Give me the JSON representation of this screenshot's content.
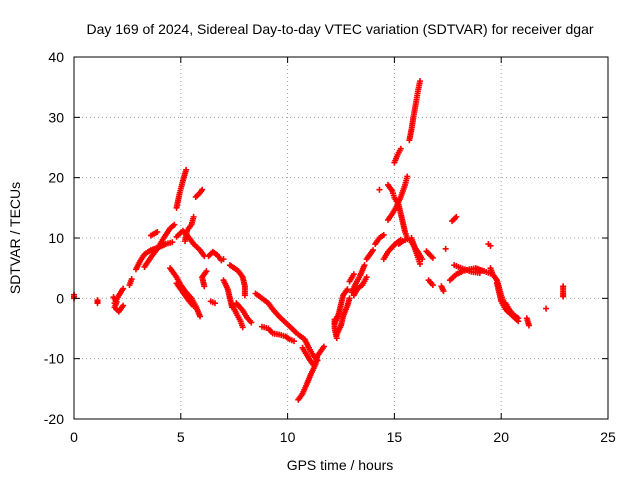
{
  "chart_data": {
    "type": "scatter",
    "title": "Day 169 of 2024, Sidereal Day-to-day VTEC variation (SDTVAR) for receiver dgar",
    "xlabel": "GPS time / hours",
    "ylabel": "SDTVAR / TECUs",
    "xlim": [
      0,
      25
    ],
    "ylim": [
      -20,
      40
    ],
    "xticks": [
      "0",
      "5",
      "10",
      "15",
      "20",
      "25"
    ],
    "yticks": [
      "-20",
      "-10",
      "0",
      "10",
      "20",
      "30",
      "40"
    ],
    "grid": true,
    "marker": "plus",
    "color": "#ff0000",
    "segments": [
      {
        "points": [
          [
            0.0,
            0.6
          ],
          [
            0.0,
            0.0
          ]
        ]
      },
      {
        "points": [
          [
            1.1,
            -0.3
          ],
          [
            1.1,
            -0.8
          ]
        ]
      },
      {
        "points": [
          [
            1.85,
            0.2
          ],
          [
            2.0,
            -0.6
          ],
          [
            1.9,
            -1.5
          ],
          [
            2.1,
            -2.2
          ],
          [
            2.3,
            -1.2
          ]
        ]
      },
      {
        "points": [
          [
            1.9,
            -0.8
          ],
          [
            2.1,
            0.5
          ],
          [
            2.3,
            1.6
          ]
        ]
      },
      {
        "points": [
          [
            2.6,
            2.2
          ],
          [
            2.7,
            3.2
          ]
        ]
      },
      {
        "points": [
          [
            2.9,
            4.8
          ],
          [
            3.1,
            6.2
          ],
          [
            3.3,
            7.3
          ],
          [
            3.6,
            8.0
          ],
          [
            4.0,
            8.5
          ],
          [
            4.3,
            9.0
          ],
          [
            4.6,
            9.3
          ]
        ]
      },
      {
        "points": [
          [
            3.3,
            5.2
          ],
          [
            3.6,
            6.8
          ],
          [
            3.9,
            8.2
          ],
          [
            4.2,
            10.0
          ],
          [
            4.5,
            11.6
          ],
          [
            4.7,
            12.2
          ]
        ]
      },
      {
        "points": [
          [
            3.6,
            10.4
          ],
          [
            3.9,
            11.0
          ]
        ]
      },
      {
        "points": [
          [
            4.5,
            5.0
          ],
          [
            4.8,
            3.5
          ],
          [
            5.0,
            2.2
          ],
          [
            5.2,
            1.2
          ],
          [
            5.5,
            0.0
          ],
          [
            5.7,
            -1.3
          ],
          [
            5.9,
            -3.0
          ]
        ]
      },
      {
        "points": [
          [
            4.8,
            2.5
          ],
          [
            5.1,
            1.0
          ],
          [
            5.4,
            -0.5
          ],
          [
            5.6,
            -1.3
          ]
        ]
      },
      {
        "points": [
          [
            4.8,
            10.2
          ],
          [
            5.1,
            11.2
          ],
          [
            5.4,
            10.0
          ],
          [
            5.6,
            9.0
          ],
          [
            5.9,
            8.0
          ],
          [
            6.1,
            7.0
          ]
        ]
      },
      {
        "points": [
          [
            5.2,
            9.5
          ],
          [
            5.3,
            11.3
          ],
          [
            5.5,
            12.2
          ],
          [
            5.6,
            13.5
          ]
        ]
      },
      {
        "points": [
          [
            4.8,
            15.0
          ],
          [
            4.95,
            17.5
          ],
          [
            5.1,
            19.5
          ],
          [
            5.25,
            21.3
          ]
        ]
      },
      {
        "points": [
          [
            5.7,
            16.8
          ],
          [
            5.9,
            17.5
          ],
          [
            6.0,
            18.0
          ]
        ]
      },
      {
        "points": [
          [
            6.1,
            2.0
          ],
          [
            6.0,
            3.5
          ],
          [
            6.2,
            4.5
          ]
        ]
      },
      {
        "points": [
          [
            6.3,
            7.0
          ],
          [
            6.5,
            7.7
          ],
          [
            6.7,
            7.2
          ],
          [
            6.9,
            6.3
          ]
        ]
      },
      {
        "points": [
          [
            7.0,
            6.5
          ]
        ]
      },
      {
        "points": [
          [
            7.0,
            3.0
          ],
          [
            7.2,
            1.5
          ],
          [
            7.3,
            0.0
          ],
          [
            7.4,
            -1.5
          ]
        ]
      },
      {
        "points": [
          [
            7.3,
            5.5
          ],
          [
            7.5,
            5.0
          ],
          [
            7.7,
            4.5
          ],
          [
            7.9,
            3.5
          ],
          [
            8.0,
            2.0
          ],
          [
            8.0,
            0.5
          ]
        ]
      },
      {
        "points": [
          [
            6.4,
            -0.5
          ],
          [
            6.6,
            -0.8
          ]
        ]
      },
      {
        "points": [
          [
            7.4,
            -1.0
          ],
          [
            7.6,
            -2.5
          ],
          [
            7.8,
            -3.8
          ],
          [
            7.9,
            -4.8
          ]
        ]
      },
      {
        "points": [
          [
            7.6,
            -0.8
          ],
          [
            7.9,
            -2.0
          ],
          [
            8.1,
            -3.2
          ],
          [
            8.3,
            -4.0
          ]
        ]
      },
      {
        "points": [
          [
            8.5,
            0.8
          ],
          [
            8.8,
            0.0
          ],
          [
            9.1,
            -0.8
          ],
          [
            9.3,
            -1.8
          ],
          [
            9.6,
            -3.0
          ],
          [
            9.9,
            -4.0
          ],
          [
            10.2,
            -5.0
          ],
          [
            10.4,
            -5.7
          ]
        ]
      },
      {
        "points": [
          [
            8.8,
            -4.7
          ],
          [
            9.1,
            -5.0
          ],
          [
            9.3,
            -5.8
          ],
          [
            9.6,
            -6.0
          ],
          [
            9.9,
            -6.3
          ],
          [
            10.1,
            -6.8
          ],
          [
            10.3,
            -7.1
          ]
        ]
      },
      {
        "points": [
          [
            10.5,
            -6.0
          ],
          [
            10.8,
            -6.8
          ],
          [
            11.0,
            -8.2
          ],
          [
            11.2,
            -9.5
          ],
          [
            11.4,
            -10.3
          ]
        ]
      },
      {
        "points": [
          [
            10.5,
            -16.8
          ],
          [
            10.7,
            -15.8
          ],
          [
            10.9,
            -14.2
          ],
          [
            11.1,
            -12.5
          ],
          [
            11.3,
            -11.0
          ],
          [
            11.4,
            -9.5
          ],
          [
            11.6,
            -8.5
          ],
          [
            11.7,
            -8.0
          ]
        ]
      },
      {
        "points": [
          [
            10.7,
            -8.2
          ],
          [
            11.0,
            -10.0
          ],
          [
            11.2,
            -11.0
          ]
        ]
      },
      {
        "points": [
          [
            12.2,
            -3.5
          ],
          [
            12.2,
            -5.0
          ],
          [
            12.3,
            -6.6
          ]
        ]
      },
      {
        "points": [
          [
            12.2,
            -4.2
          ],
          [
            12.4,
            -2.5
          ],
          [
            12.5,
            -1.0
          ],
          [
            12.6,
            0.5
          ],
          [
            12.8,
            1.5
          ]
        ]
      },
      {
        "points": [
          [
            12.3,
            -6.0
          ],
          [
            12.5,
            -4.5
          ],
          [
            12.6,
            -3.0
          ],
          [
            12.8,
            -1.2
          ],
          [
            12.9,
            0.0
          ]
        ]
      },
      {
        "points": [
          [
            12.9,
            2.8
          ],
          [
            13.1,
            4.0
          ]
        ]
      },
      {
        "points": [
          [
            13.1,
            0.5
          ],
          [
            13.3,
            1.7
          ],
          [
            13.5,
            2.2
          ],
          [
            13.7,
            3.5
          ]
        ]
      },
      {
        "points": [
          [
            13.0,
            1.0
          ],
          [
            13.2,
            2.5
          ],
          [
            13.4,
            3.8
          ],
          [
            13.6,
            5.5
          ]
        ]
      },
      {
        "points": [
          [
            13.7,
            6.5
          ],
          [
            13.9,
            7.5
          ],
          [
            14.0,
            8.0
          ]
        ]
      },
      {
        "points": [
          [
            14.1,
            9.0
          ],
          [
            14.3,
            10.0
          ],
          [
            14.5,
            10.5
          ]
        ]
      },
      {
        "points": [
          [
            14.3,
            18.0
          ]
        ]
      },
      {
        "points": [
          [
            14.5,
            6.5
          ],
          [
            14.7,
            7.7
          ],
          [
            14.9,
            8.5
          ],
          [
            15.1,
            9.2
          ],
          [
            15.3,
            9.7
          ]
        ]
      },
      {
        "points": [
          [
            14.7,
            13.0
          ],
          [
            14.9,
            14.0
          ],
          [
            15.1,
            15.2
          ],
          [
            15.3,
            16.8
          ],
          [
            15.5,
            18.8
          ],
          [
            15.6,
            20.2
          ]
        ]
      },
      {
        "points": [
          [
            14.7,
            18.8
          ],
          [
            14.9,
            17.8
          ],
          [
            15.0,
            16.7
          ],
          [
            15.2,
            15.5
          ],
          [
            15.3,
            14.0
          ],
          [
            15.4,
            12.5
          ],
          [
            15.5,
            11.0
          ],
          [
            15.6,
            10.0
          ]
        ]
      },
      {
        "points": [
          [
            15.0,
            22.5
          ],
          [
            15.15,
            23.8
          ],
          [
            15.3,
            24.8
          ]
        ]
      },
      {
        "points": [
          [
            15.2,
            9.0
          ],
          [
            15.4,
            9.5
          ],
          [
            15.6,
            9.8
          ],
          [
            15.8,
            9.5
          ],
          [
            15.9,
            8.7
          ],
          [
            16.1,
            7.7
          ],
          [
            16.3,
            6.5
          ]
        ]
      },
      {
        "points": [
          [
            15.8,
            10.0
          ],
          [
            15.9,
            9.0
          ],
          [
            16.0,
            7.8
          ],
          [
            16.1,
            6.8
          ],
          [
            16.2,
            5.7
          ]
        ]
      },
      {
        "points": [
          [
            15.7,
            26.2
          ],
          [
            15.8,
            28.0
          ],
          [
            15.9,
            30.2
          ],
          [
            16.0,
            32.2
          ],
          [
            16.1,
            34.3
          ],
          [
            16.2,
            36.0
          ]
        ]
      },
      {
        "points": [
          [
            16.5,
            7.8
          ],
          [
            16.8,
            6.7
          ]
        ]
      },
      {
        "points": [
          [
            16.6,
            3.0
          ],
          [
            16.8,
            2.2
          ]
        ]
      },
      {
        "points": [
          [
            17.2,
            2.0
          ],
          [
            17.3,
            1.2
          ]
        ]
      },
      {
        "points": [
          [
            17.4,
            8.2
          ]
        ]
      },
      {
        "points": [
          [
            17.7,
            12.8
          ],
          [
            17.9,
            13.5
          ]
        ]
      },
      {
        "points": [
          [
            17.6,
            3.0
          ],
          [
            17.9,
            4.0
          ],
          [
            18.2,
            4.5
          ],
          [
            18.5,
            4.8
          ],
          [
            18.8,
            5.0
          ],
          [
            19.2,
            4.5
          ],
          [
            19.5,
            4.1
          ]
        ]
      },
      {
        "points": [
          [
            17.8,
            5.5
          ],
          [
            18.0,
            5.2
          ],
          [
            18.3,
            4.8
          ],
          [
            18.6,
            4.4
          ],
          [
            19.0,
            4.2
          ]
        ]
      },
      {
        "points": [
          [
            18.9,
            4.8
          ]
        ]
      },
      {
        "points": [
          [
            19.4,
            9.0
          ],
          [
            19.5,
            8.7
          ]
        ]
      },
      {
        "points": [
          [
            19.5,
            5.0
          ],
          [
            19.6,
            4.0
          ],
          [
            19.8,
            3.0
          ],
          [
            19.9,
            1.8
          ],
          [
            20.0,
            0.5
          ],
          [
            20.1,
            -0.5
          ],
          [
            20.3,
            -1.8
          ],
          [
            20.5,
            -2.8
          ],
          [
            20.8,
            -3.8
          ]
        ]
      },
      {
        "points": [
          [
            19.8,
            2.5
          ],
          [
            19.9,
            1.0
          ],
          [
            20.0,
            -0.5
          ],
          [
            20.2,
            -1.8
          ],
          [
            20.4,
            -2.5
          ]
        ]
      },
      {
        "points": [
          [
            20.2,
            -0.8
          ],
          [
            20.4,
            -2.0
          ],
          [
            20.6,
            -2.8
          ],
          [
            20.8,
            -3.3
          ]
        ]
      },
      {
        "points": [
          [
            21.2,
            -3.3
          ],
          [
            21.3,
            -4.5
          ]
        ]
      },
      {
        "points": [
          [
            22.1,
            -1.7
          ]
        ]
      },
      {
        "points": [
          [
            22.9,
            2.0
          ],
          [
            22.9,
            0.8
          ],
          [
            22.9,
            0.3
          ]
        ]
      }
    ]
  }
}
